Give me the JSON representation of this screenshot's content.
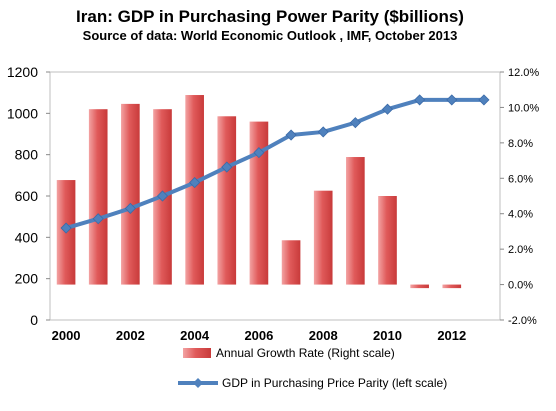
{
  "chart_data": {
    "type": "bar",
    "title": "Iran: GDP in Purchasing Power Parity ($billions)",
    "subtitle": "Source of data: World Economic Outlook , IMF, October 2013",
    "categories": [
      "2000",
      "2001",
      "2002",
      "2003",
      "2004",
      "2005",
      "2006",
      "2007",
      "2008",
      "2009",
      "2010",
      "2011",
      "2012",
      "2013"
    ],
    "x_tick_labels": [
      "2000",
      "2002",
      "2004",
      "2006",
      "2008",
      "2010",
      "2012"
    ],
    "series": [
      {
        "name": "Annual Growth Rate (Right scale)",
        "type": "bar",
        "axis": "right",
        "color": "#e05a5a",
        "values": [
          5.9,
          9.9,
          10.2,
          9.9,
          10.7,
          9.5,
          9.2,
          2.5,
          5.3,
          7.2,
          5.0,
          -0.2,
          -0.2,
          null
        ]
      },
      {
        "name": "GDP in Purchasing Price Parity (left scale)",
        "type": "line",
        "axis": "left",
        "color": "#4f81bd",
        "values": [
          445,
          490,
          540,
          600,
          665,
          740,
          810,
          895,
          910,
          955,
          1020,
          1065,
          1065,
          1065
        ]
      }
    ],
    "y_left": {
      "ylim": [
        0,
        1200
      ],
      "ticks": [
        "0",
        "200",
        "400",
        "600",
        "800",
        "1000",
        "1200"
      ]
    },
    "y_right": {
      "ylim": [
        -2.0,
        12.0
      ],
      "ticks": [
        "-2.0%",
        "0.0%",
        "2.0%",
        "4.0%",
        "6.0%",
        "8.0%",
        "10.0%",
        "12.0%"
      ]
    },
    "grid": false,
    "legend_position": "bottom"
  }
}
